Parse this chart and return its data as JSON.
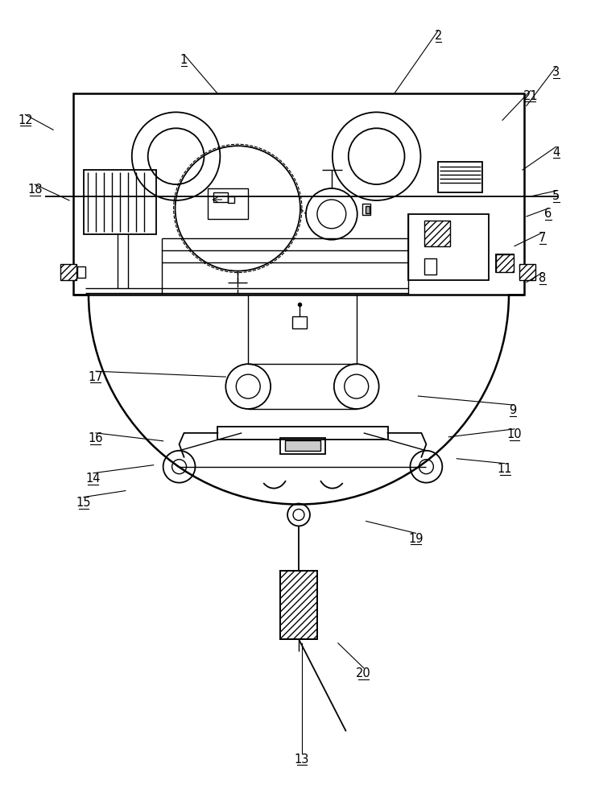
{
  "bg_color": "#ffffff",
  "line_color": "#000000",
  "label_color": "#000000",
  "fig_width": 7.39,
  "fig_height": 10.0,
  "dpi": 100
}
